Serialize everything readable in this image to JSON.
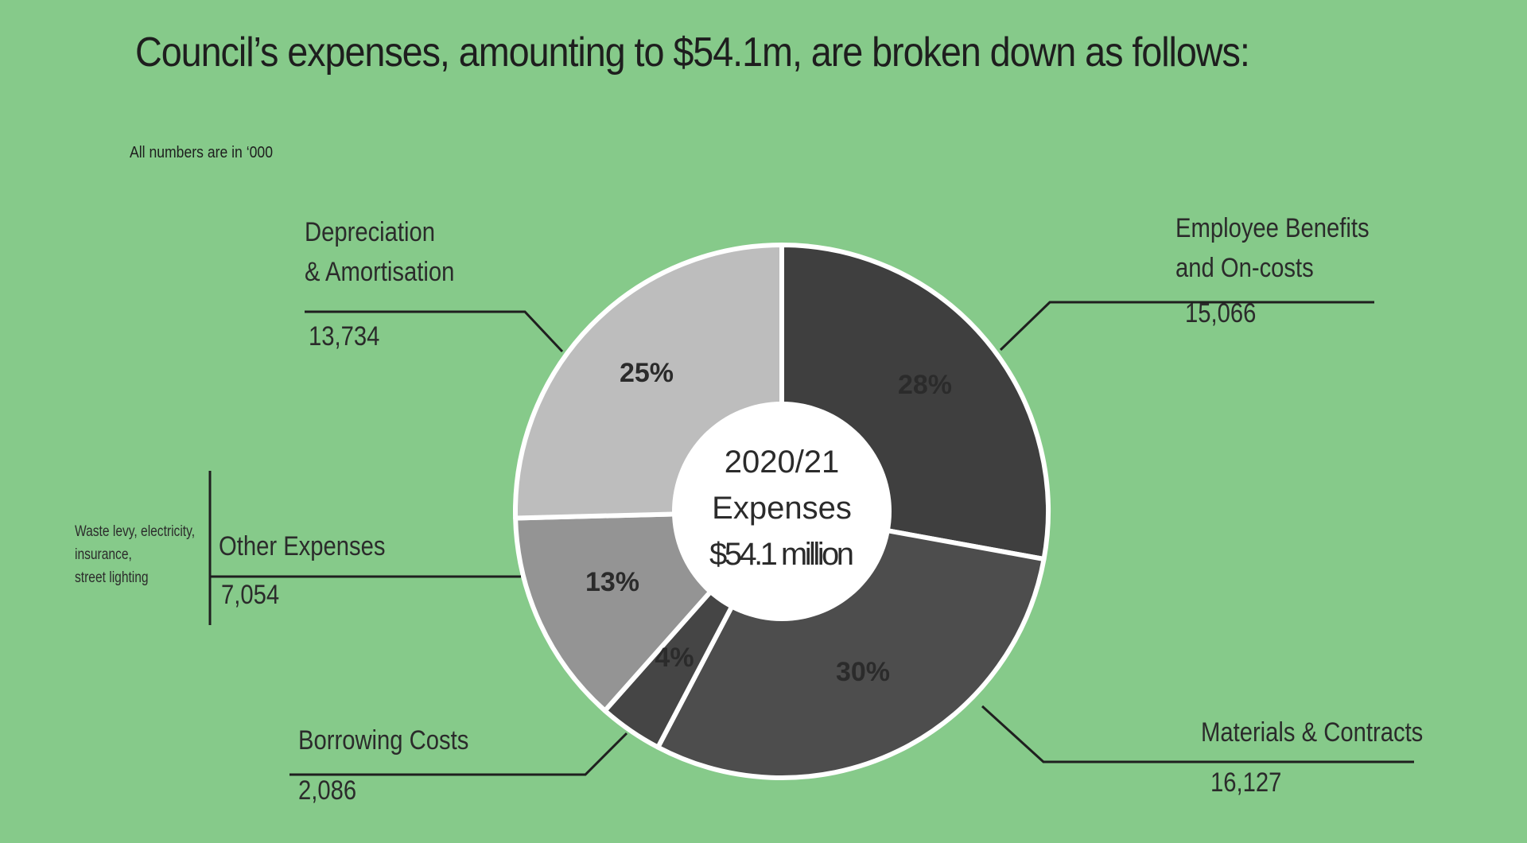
{
  "header": {
    "title": "Council’s expenses, amounting to $54.1m, are broken down as follows:",
    "note": "All numbers are in ‘000"
  },
  "center_label": [
    "2020/21",
    "Expenses",
    "$54.1 million"
  ],
  "chart_data": {
    "type": "pie",
    "variant": "donut",
    "title": "Council’s expenses, amounting to $54.1m, are broken down as follows:",
    "subtitle": "All numbers are in ‘000",
    "units": "‘000",
    "total_label": "$54.1 million",
    "slices": [
      {
        "name": "Employee Benefits and On-costs",
        "label_lines": [
          "Employee Benefits",
          "and On-costs"
        ],
        "value": 15066,
        "value_label": "15,066",
        "percent_label": "28%",
        "color": "#3f3f3f"
      },
      {
        "name": "Materials & Contracts",
        "label_lines": [
          "Materials & Contracts"
        ],
        "value": 16127,
        "value_label": "16,127",
        "percent_label": "30%",
        "color": "#4d4d4d"
      },
      {
        "name": "Borrowing Costs",
        "label_lines": [
          "Borrowing Costs"
        ],
        "value": 2086,
        "value_label": "2,086",
        "percent_label": "4%",
        "color": "#454545"
      },
      {
        "name": "Other Expenses",
        "label_lines": [
          "Other Expenses"
        ],
        "value": 7054,
        "value_label": "7,054",
        "percent_label": "13%",
        "color": "#949494",
        "note_lines": [
          "Waste levy, electricity,",
          "insurance,",
          "street lighting"
        ]
      },
      {
        "name": "Depreciation & Amortisation",
        "label_lines": [
          "Depreciation",
          "& Amortisation"
        ],
        "value": 13734,
        "value_label": "13,734",
        "percent_label": "25%",
        "color": "#bdbdbd"
      }
    ]
  }
}
